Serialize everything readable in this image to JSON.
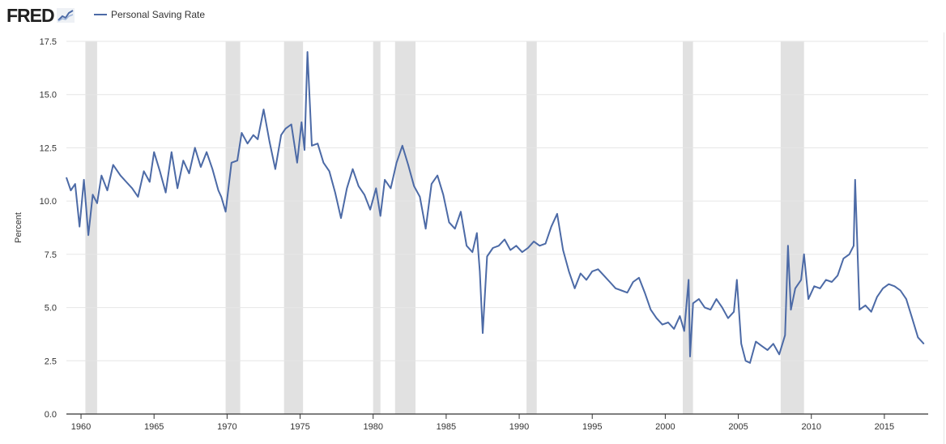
{
  "header": {
    "logo_text": "FRED",
    "legend_label": "Personal Saving Rate"
  },
  "colors": {
    "series": "#4c6aa6",
    "recession": "#e1e1e1",
    "grid": "#e6e6e6",
    "axis": "#333333"
  },
  "chart_data": {
    "type": "line",
    "title": "",
    "xlabel": "",
    "ylabel": "Percent",
    "xlim": [
      1959.0,
      2018.0
    ],
    "ylim": [
      0,
      17.5
    ],
    "grid": true,
    "y_ticks": [
      "0.0",
      "2.5",
      "5.0",
      "7.5",
      "10.0",
      "12.5",
      "15.0",
      "17.5"
    ],
    "x_ticks": [
      "1960",
      "1965",
      "1970",
      "1975",
      "1980",
      "1985",
      "1990",
      "1995",
      "2000",
      "2005",
      "2010",
      "2015"
    ],
    "recessions": [
      [
        1960.3,
        1961.1
      ],
      [
        1969.9,
        1970.9
      ],
      [
        1973.9,
        1975.2
      ],
      [
        1980.0,
        1980.5
      ],
      [
        1981.5,
        1982.9
      ],
      [
        1990.5,
        1991.2
      ],
      [
        2001.2,
        2001.9
      ],
      [
        2007.9,
        2009.5
      ]
    ],
    "series": [
      {
        "name": "Personal Saving Rate",
        "x": [
          1959.0,
          1959.3,
          1959.6,
          1959.9,
          1960.2,
          1960.5,
          1960.8,
          1961.1,
          1961.4,
          1961.8,
          1962.2,
          1962.7,
          1963.1,
          1963.5,
          1963.9,
          1964.3,
          1964.7,
          1965.0,
          1965.4,
          1965.8,
          1966.2,
          1966.6,
          1967.0,
          1967.4,
          1967.8,
          1968.2,
          1968.6,
          1969.0,
          1969.4,
          1969.6,
          1969.9,
          1970.3,
          1970.7,
          1971.0,
          1971.4,
          1971.8,
          1972.1,
          1972.5,
          1972.9,
          1973.3,
          1973.7,
          1974.0,
          1974.4,
          1974.8,
          1975.1,
          1975.3,
          1975.5,
          1975.8,
          1976.2,
          1976.6,
          1977.0,
          1977.4,
          1977.8,
          1978.2,
          1978.6,
          1979.0,
          1979.4,
          1979.8,
          1980.2,
          1980.5,
          1980.8,
          1981.2,
          1981.6,
          1982.0,
          1982.4,
          1982.8,
          1983.2,
          1983.6,
          1984.0,
          1984.4,
          1984.8,
          1985.2,
          1985.6,
          1986.0,
          1986.4,
          1986.8,
          1987.1,
          1987.3,
          1987.5,
          1987.8,
          1988.2,
          1988.6,
          1989.0,
          1989.4,
          1989.8,
          1990.2,
          1990.6,
          1991.0,
          1991.4,
          1991.8,
          1992.2,
          1992.6,
          1993.0,
          1993.4,
          1993.8,
          1994.2,
          1994.6,
          1995.0,
          1995.4,
          1995.8,
          1996.2,
          1996.6,
          1997.0,
          1997.4,
          1997.8,
          1998.2,
          1998.6,
          1999.0,
          1999.4,
          1999.8,
          2000.2,
          2000.6,
          2001.0,
          2001.3,
          2001.6,
          2001.7,
          2001.9,
          2002.3,
          2002.7,
          2003.1,
          2003.5,
          2003.9,
          2004.3,
          2004.7,
          2004.9,
          2005.2,
          2005.5,
          2005.8,
          2006.2,
          2006.6,
          2007.0,
          2007.4,
          2007.8,
          2008.2,
          2008.4,
          2008.6,
          2008.9,
          2009.3,
          2009.5,
          2009.8,
          2010.2,
          2010.6,
          2011.0,
          2011.4,
          2011.8,
          2012.2,
          2012.6,
          2012.9,
          2013.0,
          2013.3,
          2013.7,
          2014.1,
          2014.5,
          2014.9,
          2015.3,
          2015.7,
          2016.1,
          2016.5,
          2016.9,
          2017.3,
          2017.7
        ],
        "values": [
          11.1,
          10.5,
          10.8,
          8.8,
          11.0,
          8.4,
          10.3,
          9.9,
          11.2,
          10.5,
          11.7,
          11.2,
          10.9,
          10.6,
          10.2,
          11.4,
          10.9,
          12.3,
          11.4,
          10.4,
          12.3,
          10.6,
          11.9,
          11.3,
          12.5,
          11.6,
          12.3,
          11.5,
          10.5,
          10.2,
          9.5,
          11.8,
          11.9,
          13.2,
          12.7,
          13.1,
          12.9,
          14.3,
          12.8,
          11.5,
          13.1,
          13.4,
          13.6,
          11.8,
          13.7,
          12.4,
          17.0,
          12.6,
          12.7,
          11.8,
          11.4,
          10.4,
          9.2,
          10.6,
          11.5,
          10.7,
          10.3,
          9.6,
          10.6,
          9.3,
          11.0,
          10.6,
          11.8,
          12.6,
          11.7,
          10.7,
          10.2,
          8.7,
          10.8,
          11.2,
          10.3,
          9.0,
          8.7,
          9.5,
          7.9,
          7.6,
          8.5,
          6.7,
          3.8,
          7.4,
          7.8,
          7.9,
          8.2,
          7.7,
          7.9,
          7.6,
          7.8,
          8.1,
          7.9,
          8.0,
          8.8,
          9.4,
          7.7,
          6.7,
          5.9,
          6.6,
          6.3,
          6.7,
          6.8,
          6.5,
          6.2,
          5.9,
          5.8,
          5.7,
          6.2,
          6.4,
          5.7,
          4.9,
          4.5,
          4.2,
          4.3,
          4.0,
          4.6,
          3.9,
          6.3,
          2.7,
          5.2,
          5.4,
          5.0,
          4.9,
          5.4,
          5.0,
          4.5,
          4.8,
          6.3,
          3.3,
          2.5,
          2.4,
          3.4,
          3.2,
          3.0,
          3.3,
          2.8,
          3.7,
          7.9,
          4.9,
          5.9,
          6.3,
          7.5,
          5.4,
          6.0,
          5.9,
          6.3,
          6.2,
          6.5,
          7.3,
          7.5,
          7.9,
          11.0,
          4.9,
          5.1,
          4.8,
          5.5,
          5.9,
          6.1,
          6.0,
          5.8,
          5.4,
          4.5,
          3.6,
          3.3
        ]
      }
    ]
  }
}
